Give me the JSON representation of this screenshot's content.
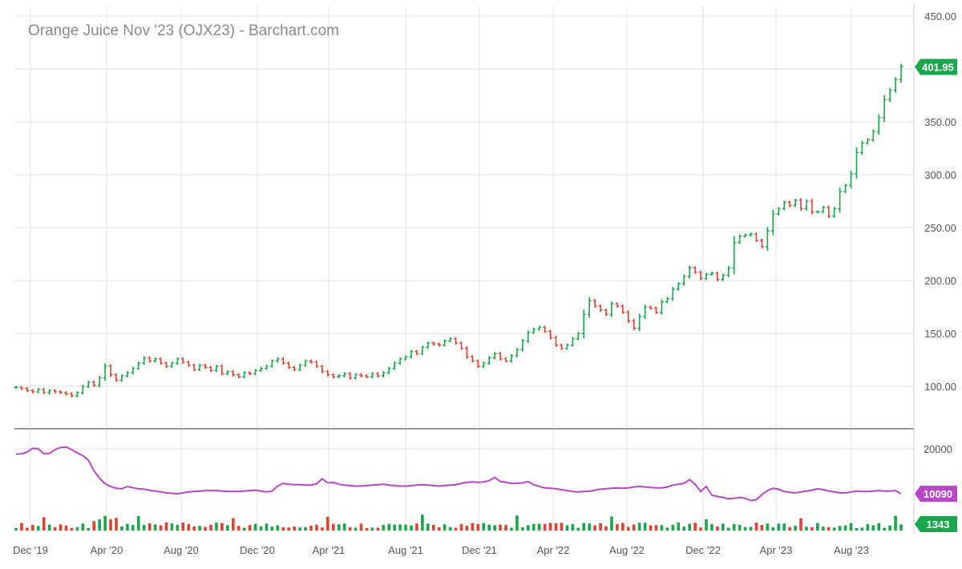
{
  "chart_data": {
    "type": "ohlc",
    "title": "Orange Juice Nov '23 (OJX23) - Barchart.com",
    "x_tick_labels": [
      "Dec '19",
      "Apr '20",
      "Aug '20",
      "Dec '20",
      "Apr '21",
      "Aug '21",
      "Dec '21",
      "Apr '22",
      "Aug '22",
      "Dec '22",
      "Apr '23",
      "Aug '23"
    ],
    "price_axis": {
      "ticks": [
        100,
        150,
        200,
        250,
        300,
        350,
        450
      ],
      "tick_labels": [
        "100.00",
        "150.00",
        "200.00",
        "250.00",
        "300.00",
        "350.00",
        "450.00"
      ],
      "range": [
        60,
        450
      ]
    },
    "last_price_label": "401.95",
    "last_price": 401.95,
    "price_series_weekly_close": [
      99,
      98,
      96,
      95,
      97,
      94,
      96,
      95,
      94,
      93,
      91,
      94,
      100,
      104,
      101,
      108,
      119,
      111,
      106,
      110,
      113,
      117,
      122,
      127,
      124,
      126,
      122,
      119,
      122,
      126,
      123,
      120,
      116,
      120,
      118,
      115,
      119,
      112,
      114,
      111,
      109,
      113,
      112,
      115,
      117,
      119,
      124,
      126,
      122,
      118,
      116,
      120,
      124,
      123,
      119,
      114,
      111,
      109,
      110,
      112,
      108,
      111,
      110,
      109,
      112,
      110,
      113,
      117,
      122,
      126,
      128,
      133,
      131,
      137,
      141,
      140,
      139,
      143,
      145,
      141,
      136,
      128,
      124,
      119,
      122,
      127,
      131,
      126,
      124,
      129,
      135,
      143,
      151,
      154,
      156,
      152,
      146,
      139,
      136,
      139,
      145,
      150,
      168,
      181,
      176,
      172,
      168,
      178,
      176,
      170,
      162,
      155,
      166,
      175,
      174,
      170,
      180,
      183,
      192,
      197,
      204,
      212,
      208,
      202,
      206,
      207,
      201,
      205,
      212,
      236,
      242,
      243,
      244,
      238,
      232,
      247,
      263,
      268,
      274,
      271,
      276,
      268,
      275,
      265,
      265,
      269,
      261,
      268,
      284,
      290,
      301,
      321,
      330,
      333,
      341,
      354,
      371,
      380,
      390,
      401.95
    ],
    "indicator_1": {
      "label": "20000",
      "last_value_label": "10090",
      "reference_level": 20000,
      "last_value": 10090,
      "series": [
        18800,
        18900,
        19300,
        20100,
        20000,
        18900,
        19000,
        19800,
        20300,
        20400,
        19800,
        19100,
        18500,
        17500,
        15200,
        13500,
        12300,
        11700,
        11300,
        11200,
        11700,
        11400,
        11200,
        11100,
        10900,
        10700,
        10500,
        10300,
        10200,
        10100,
        10300,
        10500,
        10600,
        10700,
        10800,
        10800,
        10800,
        10700,
        10600,
        10600,
        10600,
        10700,
        10800,
        10900,
        10700,
        10500,
        10700,
        11800,
        12400,
        12200,
        12100,
        12100,
        12000,
        12000,
        12300,
        13400,
        12500,
        12600,
        12200,
        12000,
        11900,
        11800,
        11800,
        11900,
        12000,
        12100,
        12200,
        12000,
        11900,
        11800,
        11800,
        11900,
        12000,
        12100,
        12000,
        11900,
        11800,
        11900,
        12000,
        12100,
        12400,
        12600,
        12700,
        12600,
        12700,
        13000,
        13700,
        12800,
        12600,
        12400,
        12400,
        12500,
        12800,
        12100,
        11700,
        11400,
        11300,
        11200,
        11000,
        10800,
        10600,
        10500,
        10600,
        10700,
        10900,
        11100,
        11200,
        11300,
        11400,
        11300,
        11400,
        11600,
        11700,
        11600,
        11500,
        11400,
        11400,
        11600,
        12000,
        12200,
        12400,
        13200,
        12200,
        10600,
        11700,
        9800,
        9500,
        9300,
        9000,
        9100,
        9300,
        9100,
        8600,
        8800,
        9900,
        10800,
        11300,
        11100,
        10600,
        10400,
        10300,
        10500,
        10700,
        10900,
        11200,
        11000,
        10700,
        10500,
        10300,
        10300,
        10500,
        10700,
        10600,
        10600,
        10700,
        10800,
        10700,
        10700,
        10800,
        10090
      ]
    },
    "volume": {
      "last_value_label": "1343",
      "last_value": 1343,
      "note": "volume bars shown in lower panel"
    }
  }
}
